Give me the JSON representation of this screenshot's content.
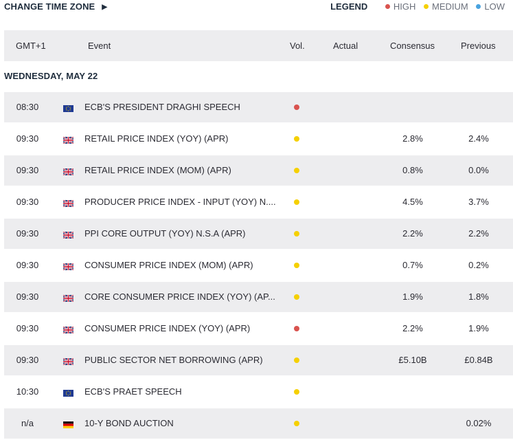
{
  "toolbar": {
    "change_tz_label": "CHANGE TIME ZONE",
    "legend_title": "LEGEND",
    "legend": [
      {
        "label": "HIGH",
        "color": "#d9534f"
      },
      {
        "label": "MEDIUM",
        "color": "#f5d000"
      },
      {
        "label": "LOW",
        "color": "#4aa3df"
      }
    ]
  },
  "table": {
    "headers": {
      "time": "GMT+1",
      "event": "Event",
      "vol": "Vol.",
      "actual": "Actual",
      "consensus": "Consensus",
      "previous": "Previous"
    },
    "day_label": "WEDNESDAY, MAY 22",
    "rows": [
      {
        "time": "08:30",
        "flag": "eu",
        "event": "ECB'S PRESIDENT DRAGHI SPEECH",
        "vol": "high",
        "actual": "",
        "consensus": "",
        "previous": ""
      },
      {
        "time": "09:30",
        "flag": "uk",
        "event": "RETAIL PRICE INDEX (YOY) (APR)",
        "vol": "medium",
        "actual": "",
        "consensus": "2.8%",
        "previous": "2.4%"
      },
      {
        "time": "09:30",
        "flag": "uk",
        "event": "RETAIL PRICE INDEX (MOM) (APR)",
        "vol": "medium",
        "actual": "",
        "consensus": "0.8%",
        "previous": "0.0%"
      },
      {
        "time": "09:30",
        "flag": "uk",
        "event": "PRODUCER PRICE INDEX - INPUT (YOY) N....",
        "vol": "medium",
        "actual": "",
        "consensus": "4.5%",
        "previous": "3.7%"
      },
      {
        "time": "09:30",
        "flag": "uk",
        "event": "PPI CORE OUTPUT (YOY) N.S.A (APR)",
        "vol": "medium",
        "actual": "",
        "consensus": "2.2%",
        "previous": "2.2%"
      },
      {
        "time": "09:30",
        "flag": "uk",
        "event": "CONSUMER PRICE INDEX (MOM) (APR)",
        "vol": "medium",
        "actual": "",
        "consensus": "0.7%",
        "previous": "0.2%"
      },
      {
        "time": "09:30",
        "flag": "uk",
        "event": "CORE CONSUMER PRICE INDEX (YOY) (AP...",
        "vol": "medium",
        "actual": "",
        "consensus": "1.9%",
        "previous": "1.8%"
      },
      {
        "time": "09:30",
        "flag": "uk",
        "event": "CONSUMER PRICE INDEX (YOY) (APR)",
        "vol": "high",
        "actual": "",
        "consensus": "2.2%",
        "previous": "1.9%"
      },
      {
        "time": "09:30",
        "flag": "uk",
        "event": "PUBLIC SECTOR NET BORROWING (APR)",
        "vol": "medium",
        "actual": "",
        "consensus": "£5.10B",
        "previous": "£0.84B"
      },
      {
        "time": "10:30",
        "flag": "eu",
        "event": "ECB'S PRAET SPEECH",
        "vol": "medium",
        "actual": "",
        "consensus": "",
        "previous": ""
      },
      {
        "time": "n/a",
        "flag": "de",
        "event": "10-Y BOND AUCTION",
        "vol": "medium",
        "actual": "",
        "consensus": "",
        "previous": "0.02%"
      }
    ]
  }
}
